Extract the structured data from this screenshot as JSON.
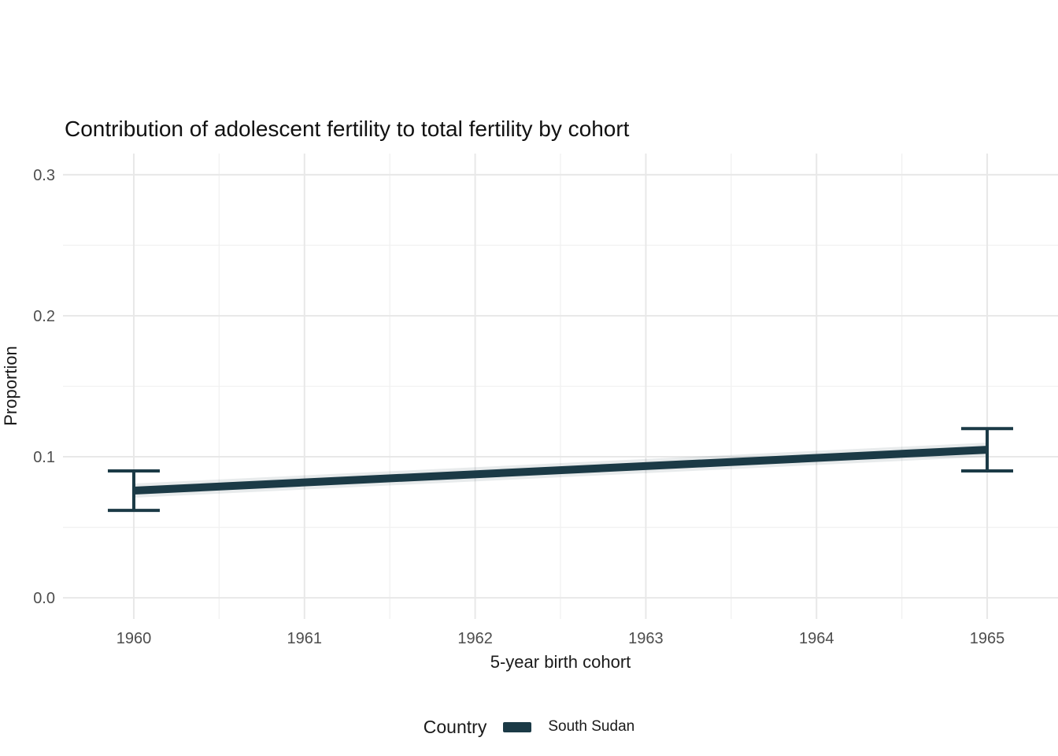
{
  "chart_data": {
    "type": "line",
    "title": "Contribution of adolescent fertility to total fertility by cohort",
    "xlabel": "5-year birth cohort",
    "ylabel": "Proportion",
    "x_ticks": [
      1960,
      1961,
      1962,
      1963,
      1964,
      1965
    ],
    "x_minor": [
      1960.5,
      1961.5,
      1962.5,
      1963.5,
      1964.5
    ],
    "y_ticks": [
      0.0,
      0.1,
      0.2,
      0.3
    ],
    "y_tick_labels": [
      "0.0",
      "0.1",
      "0.2",
      "0.3"
    ],
    "y_minor": [
      0.05,
      0.15,
      0.25
    ],
    "xlim": [
      1959.585,
      1965.415
    ],
    "ylim": [
      -0.015,
      0.315
    ],
    "grid": true,
    "legend_position": "bottom",
    "series": [
      {
        "name": "South Sudan",
        "x": [
          1960,
          1965
        ],
        "values": [
          0.076,
          0.105
        ],
        "ci_lower": [
          0.062,
          0.09
        ],
        "ci_upper": [
          0.09,
          0.12
        ],
        "color": "#1b3a46"
      }
    ]
  },
  "legend": {
    "title": "Country",
    "items": [
      {
        "label": "South Sudan",
        "color": "#1b3a46"
      }
    ]
  },
  "colors": {
    "background": "#ffffff",
    "grid_major": "#e8e8e8",
    "grid_minor": "#f1f1f1",
    "tick_label": "#4d4d4d",
    "text": "#1a1a1a"
  }
}
